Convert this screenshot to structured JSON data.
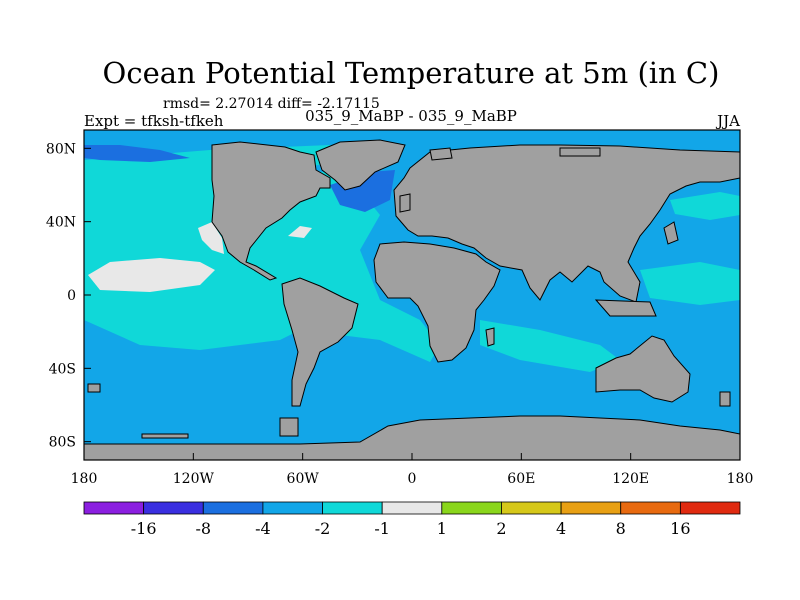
{
  "chart_data": {
    "type": "heatmap",
    "title": "Ocean Potential Temperature at 5m (in C)",
    "stats_line": "rmsd= 2.27014 diff= -2.17115",
    "left_label": "Expt = tfksh-tfkeh",
    "center_label": "035_9_MaBP - 035_9_MaBP",
    "right_label": "JJA",
    "x_ticks": [
      {
        "value": -180,
        "label": "180"
      },
      {
        "value": -120,
        "label": "120W"
      },
      {
        "value": -60,
        "label": "60W"
      },
      {
        "value": 0,
        "label": "0"
      },
      {
        "value": 60,
        "label": "60E"
      },
      {
        "value": 120,
        "label": "120E"
      },
      {
        "value": 180,
        "label": "180"
      }
    ],
    "y_ticks": [
      {
        "value": 80,
        "label": "80N"
      },
      {
        "value": 40,
        "label": "40N"
      },
      {
        "value": 0,
        "label": "0"
      },
      {
        "value": -40,
        "label": "40S"
      },
      {
        "value": -80,
        "label": "80S"
      }
    ],
    "xlim": [
      -180,
      180
    ],
    "ylim": [
      -90,
      90
    ],
    "colorbar": {
      "colors": [
        "#8b1fe0",
        "#3a2fe0",
        "#1b6fe0",
        "#12a6e8",
        "#10d8d8",
        "#e8e8e8",
        "#8ad61c",
        "#d6c81a",
        "#e8a014",
        "#e86a10",
        "#e02a10"
      ],
      "labels": [
        "-16",
        "-8",
        "-4",
        "-2",
        "-1",
        "1",
        "2",
        "4",
        "8",
        "16"
      ]
    },
    "land_color": "#a0a0a0"
  }
}
